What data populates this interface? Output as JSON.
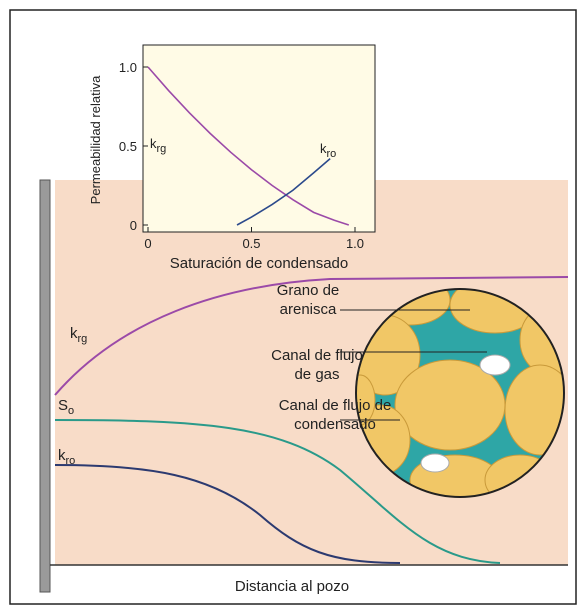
{
  "chart_data": {
    "type": "line",
    "y_label": "Permeabilidad relativa",
    "x_label": "Saturación de condensado",
    "xlim": [
      0,
      1.1
    ],
    "ylim": [
      0,
      1.15
    ],
    "xticks": [
      0,
      0.5,
      {
        "value": 1,
        "label": "1.0"
      }
    ],
    "yticks": [
      0,
      0.5,
      {
        "value": 1,
        "label": "1.0"
      }
    ],
    "series": [
      {
        "label": {
          "main": "k",
          "sub": "rg"
        },
        "color": "#9b4aa8",
        "x": [
          0,
          0.1,
          0.2,
          0.3,
          0.4,
          0.5,
          0.6,
          0.7,
          0.8,
          0.9,
          0.97
        ],
        "values": [
          1.0,
          0.85,
          0.71,
          0.58,
          0.46,
          0.35,
          0.25,
          0.16,
          0.08,
          0.03,
          0
        ]
      },
      {
        "label": {
          "main": "k",
          "sub": "ro"
        },
        "color": "#2c4a8c",
        "x": [
          0.43,
          0.5,
          0.6,
          0.7,
          0.8,
          0.88
        ],
        "values": [
          0,
          0.05,
          0.13,
          0.22,
          0.33,
          0.42
        ]
      }
    ]
  },
  "diagram": {
    "curve_labels": [
      {
        "main": "k",
        "sub": "rg"
      },
      {
        "main": "S",
        "sub": "o"
      },
      {
        "main": "k",
        "sub": "ro"
      }
    ],
    "grain_labels": [
      [
        "Grano de",
        "arenisca"
      ],
      [
        "Canal de flujo",
        "de gas"
      ],
      [
        "Canal de flujo de",
        "condensado"
      ]
    ],
    "x_axis_label": "Distancia al pozo"
  }
}
